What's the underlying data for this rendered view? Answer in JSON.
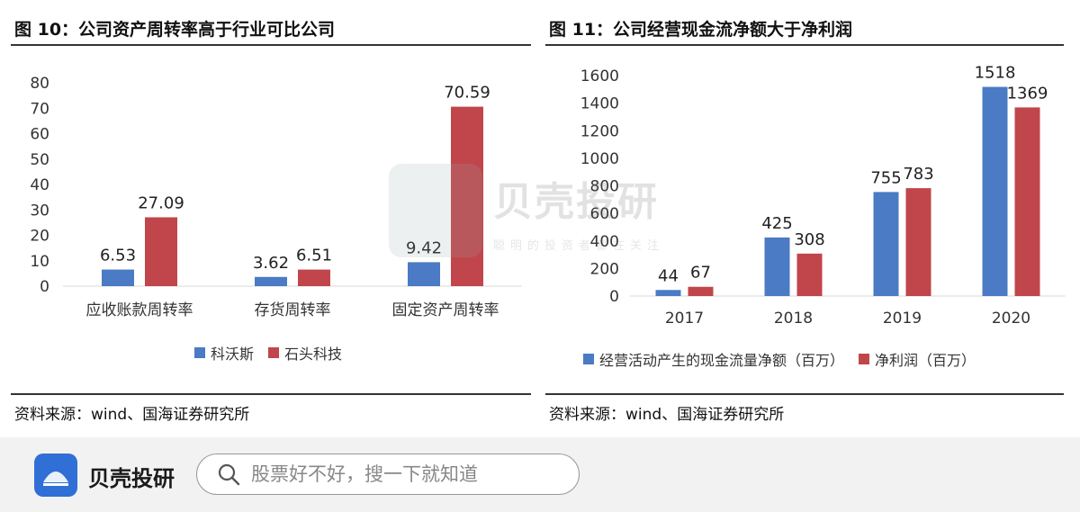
{
  "left_panel": {
    "title": "图 10：公司资产周转率高于行业可比公司",
    "source": "资料来源：wind、国海证券研究所"
  },
  "right_panel": {
    "title": "图 11：公司经营现金流净额大于净利润",
    "source": "资料来源：wind、国海证券研究所"
  },
  "watermark": {
    "name": "贝壳投研",
    "tagline": "聪明的投资者都在关注"
  },
  "bottom_bar": {
    "app_name": "贝壳投研",
    "search_placeholder": "股票好不好，搜一下就知道"
  },
  "colors": {
    "blue": "#4a7bc4",
    "red": "#c0464b"
  },
  "chart_data": [
    {
      "type": "bar",
      "categories": [
        "应收账款周转率",
        "存货周转率",
        "固定资产周转率"
      ],
      "series": [
        {
          "name": "科沃斯",
          "values": [
            6.53,
            3.62,
            9.42
          ],
          "labels": [
            "6.53",
            "3.62",
            "9.42"
          ],
          "color": "#4a7bc4"
        },
        {
          "name": "石头科技",
          "values": [
            27.09,
            6.51,
            70.59
          ],
          "labels": [
            "27.09",
            "6.51",
            "70.59"
          ],
          "color": "#c0464b"
        }
      ],
      "yticks": [
        "0",
        "10",
        "20",
        "30",
        "40",
        "50",
        "60",
        "70",
        "80"
      ],
      "ylim": [
        0,
        80
      ],
      "legend": "bottom"
    },
    {
      "type": "bar",
      "categories": [
        "2017",
        "2018",
        "2019",
        "2020"
      ],
      "series": [
        {
          "name": "经营活动产生的现金流量净额（百万）",
          "values": [
            44,
            425,
            755,
            1518
          ],
          "labels": [
            "44",
            "425",
            "755",
            "1518"
          ],
          "color": "#4a7bc4"
        },
        {
          "name": "净利润（百万）",
          "values": [
            67,
            308,
            783,
            1369
          ],
          "labels": [
            "67",
            "308",
            "783",
            "1369"
          ],
          "color": "#c0464b"
        }
      ],
      "yticks": [
        "0",
        "200",
        "400",
        "600",
        "800",
        "1000",
        "1200",
        "1400",
        "1600"
      ],
      "ylim": [
        0,
        1600
      ],
      "legend": "bottom"
    }
  ]
}
